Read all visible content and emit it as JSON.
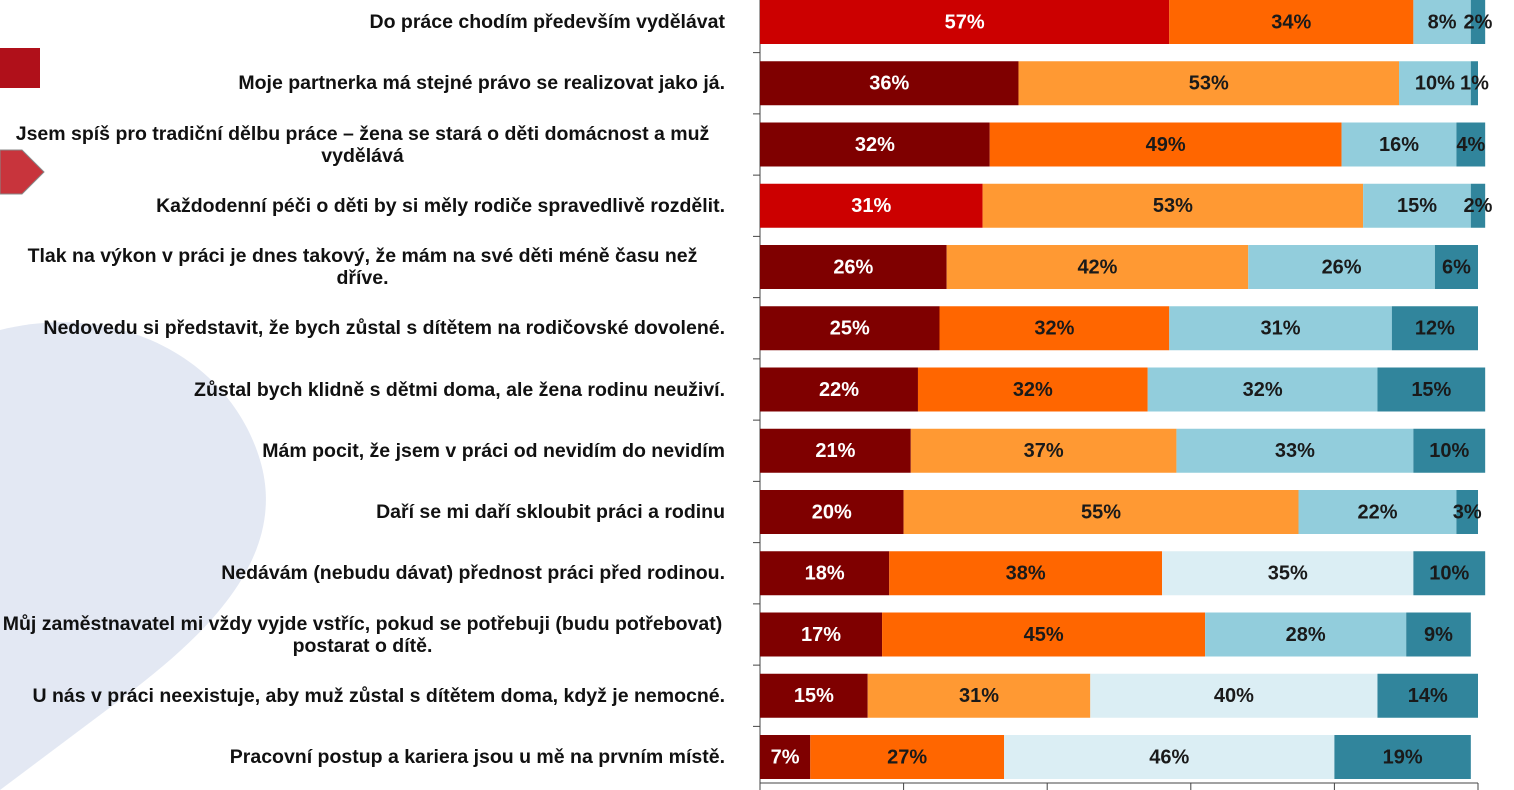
{
  "chart_data": {
    "type": "stacked-bar-horizontal",
    "categories": [
      "Do práce chodím především vydělávat",
      "Moje partnerka má stejné právo se realizovat jako já.",
      "Jsem spíš pro tradiční dělbu práce – žena se stará o děti domácnost a muž vydělává",
      "Každodenní péči o děti by si měly rodiče spravedlivě rozdělit.",
      "Tlak na výkon v práci je dnes takový, že mám na své děti méně času než dříve.",
      "Nedovedu si představit, že bych zůstal s dítětem na rodičovské dovolené.",
      "Zůstal bych klidně s dětmi doma, ale žena rodinu neuživí.",
      "Mám pocit, že jsem v práci od nevidím do nevidím",
      "Daří se mi daří skloubit práci a rodinu",
      "Nedávám (nebudu dávat) přednost práci před rodinou.",
      "Můj zaměstnavatel mi vždy vyjde vstříc, pokud se potřebuji (budu potřebovat) postarat o dítě.",
      "U nás v práci neexistuje, aby muž zůstal s dítětem doma, když je nemocné.",
      "Pracovní postup a kariera jsou u mě na prvním místě."
    ],
    "series": [
      {
        "values": [
          57,
          36,
          32,
          31,
          26,
          25,
          22,
          21,
          20,
          18,
          17,
          15,
          7
        ],
        "value_labels": [
          "57%",
          "36%",
          "32%",
          "31%",
          "26%",
          "25%",
          "22%",
          "21%",
          "20%",
          "18%",
          "17%",
          "15%",
          "7%"
        ],
        "colors": [
          "#cc0000",
          "#7f0000",
          "#7f0000",
          "#cc0000",
          "#7f0000",
          "#7f0000",
          "#7f0000",
          "#7f0000",
          "#7f0000",
          "#7f0000",
          "#7f0000",
          "#7f0000",
          "#7f0000"
        ]
      },
      {
        "values": [
          34,
          53,
          49,
          53,
          42,
          32,
          32,
          37,
          55,
          38,
          45,
          31,
          27
        ],
        "value_labels": [
          "34%",
          "53%",
          "49%",
          "53%",
          "42%",
          "32%",
          "32%",
          "37%",
          "55%",
          "38%",
          "45%",
          "31%",
          "27%"
        ],
        "colors": [
          "#ff6600",
          "#ff9933",
          "#ff6600",
          "#ff9933",
          "#ff9933",
          "#ff6600",
          "#ff6600",
          "#ff9933",
          "#ff9933",
          "#ff6600",
          "#ff6600",
          "#ff9933",
          "#ff6600"
        ]
      },
      {
        "values": [
          8,
          10,
          16,
          15,
          26,
          31,
          32,
          33,
          22,
          35,
          28,
          40,
          46
        ],
        "value_labels": [
          "8%",
          "10%",
          "16%",
          "15%",
          "26%",
          "31%",
          "32%",
          "33%",
          "22%",
          "35%",
          "28%",
          "40%",
          "46%"
        ],
        "colors": [
          "#92cddc",
          "#92cddc",
          "#92cddc",
          "#92cddc",
          "#92cddc",
          "#92cddc",
          "#92cddc",
          "#92cddc",
          "#92cddc",
          "#dbeef4",
          "#92cddc",
          "#dbeef4",
          "#dbeef4"
        ]
      },
      {
        "values": [
          2,
          1,
          4,
          2,
          6,
          12,
          15,
          10,
          3,
          10,
          9,
          14,
          19
        ],
        "value_labels": [
          "2%",
          "1%",
          "4%",
          "2%",
          "6%",
          "12%",
          "15%",
          "10%",
          "3%",
          "10%",
          "9%",
          "14%",
          "19%"
        ],
        "colors": [
          "#31859c",
          "#31859c",
          "#31859c",
          "#31859c",
          "#31859c",
          "#31859c",
          "#31859c",
          "#31859c",
          "#31859c",
          "#31859c",
          "#31859c",
          "#31859c",
          "#31859c"
        ]
      }
    ],
    "xlim": [
      0,
      100
    ],
    "xticks": [
      0,
      20,
      40,
      60,
      80,
      100
    ]
  }
}
